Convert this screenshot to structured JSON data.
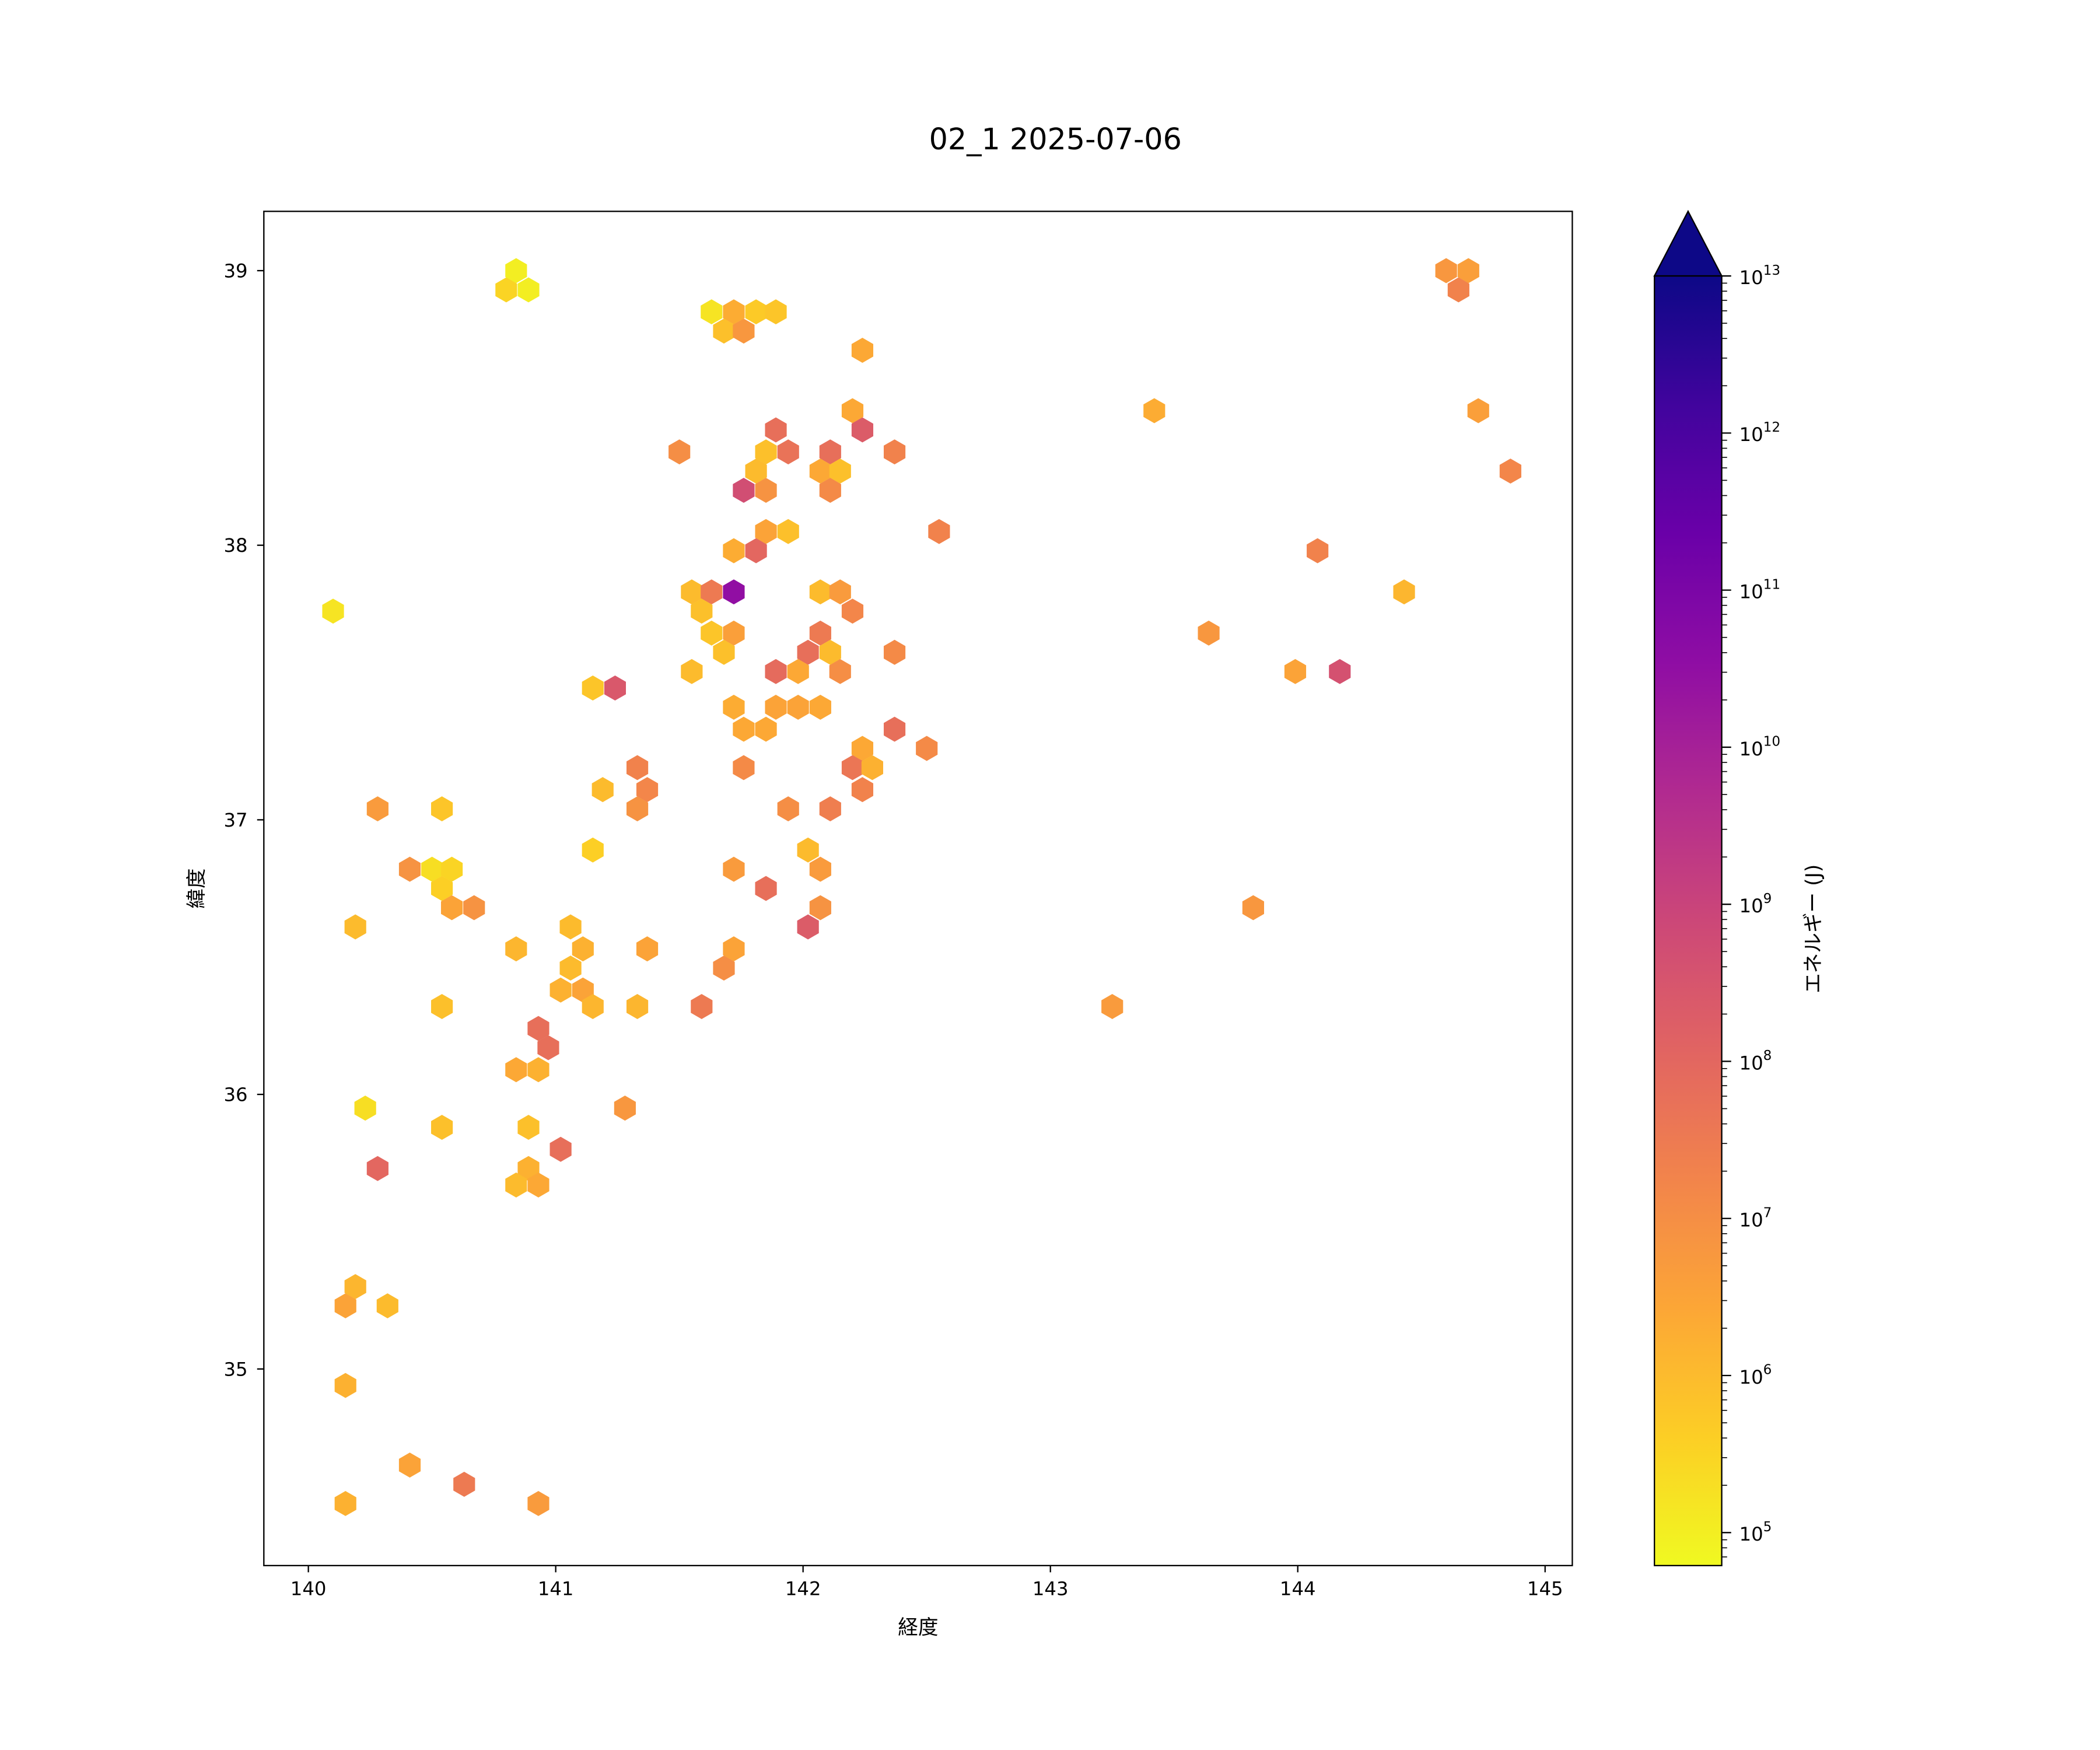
{
  "chart_data": {
    "type": "hexbin",
    "title": "02_1 2025-07-06",
    "xlabel": "経度",
    "ylabel": "緯度",
    "xlim": [
      139.82,
      145.11
    ],
    "ylim": [
      34.284,
      39.216
    ],
    "xticks": [
      {
        "v": 140,
        "label": "140"
      },
      {
        "v": 141,
        "label": "141"
      },
      {
        "v": 142,
        "label": "142"
      },
      {
        "v": 143,
        "label": "143"
      },
      {
        "v": 144,
        "label": "144"
      },
      {
        "v": 145,
        "label": "145"
      }
    ],
    "yticks": [
      {
        "v": 35,
        "label": "35"
      },
      {
        "v": 36,
        "label": "36"
      },
      {
        "v": 37,
        "label": "37"
      },
      {
        "v": 38,
        "label": "38"
      },
      {
        "v": 39,
        "label": "39"
      }
    ],
    "grid": false,
    "colorbar": {
      "label": "エネルギー (J)",
      "scale": "log",
      "log_range": [
        4.79,
        13
      ],
      "extend": "max",
      "colormap": "plasma_r",
      "colormap_stops": [
        "#0d0887",
        "#41049d",
        "#6a00a8",
        "#8f0da4",
        "#b12a90",
        "#cc4778",
        "#e16462",
        "#f2844b",
        "#fca636",
        "#fcce25",
        "#f0f921"
      ],
      "ticks": [
        {
          "log": 5,
          "base": "10",
          "exp": "5"
        },
        {
          "log": 6,
          "base": "10",
          "exp": "6"
        },
        {
          "log": 7,
          "base": "10",
          "exp": "7"
        },
        {
          "log": 8,
          "base": "10",
          "exp": "8"
        },
        {
          "log": 9,
          "base": "10",
          "exp": "9"
        },
        {
          "log": 10,
          "base": "10",
          "exp": "10"
        },
        {
          "log": 11,
          "base": "10",
          "exp": "11"
        },
        {
          "log": 12,
          "base": "10",
          "exp": "12"
        },
        {
          "log": 13,
          "base": "10",
          "exp": "13"
        }
      ]
    },
    "bins_lon_lat_log10energy": [
      [
        140.84,
        39.0,
        5.0
      ],
      [
        140.8,
        38.93,
        5.5
      ],
      [
        140.89,
        38.93,
        5.0
      ],
      [
        141.63,
        38.85,
        5.2
      ],
      [
        141.72,
        38.85,
        6.3
      ],
      [
        141.81,
        38.85,
        5.7
      ],
      [
        141.89,
        38.85,
        5.8
      ],
      [
        141.68,
        38.78,
        5.9
      ],
      [
        141.76,
        38.78,
        6.8
      ],
      [
        142.24,
        38.71,
        6.4
      ],
      [
        142.2,
        38.49,
        6.4
      ],
      [
        141.5,
        38.34,
        7.0
      ],
      [
        141.89,
        38.42,
        7.8
      ],
      [
        141.94,
        38.34,
        7.7
      ],
      [
        141.85,
        38.34,
        5.9
      ],
      [
        142.11,
        38.34,
        7.8
      ],
      [
        142.24,
        38.42,
        8.3
      ],
      [
        142.37,
        38.34,
        7.3
      ],
      [
        141.81,
        38.27,
        6.0
      ],
      [
        142.07,
        38.27,
        6.4
      ],
      [
        142.15,
        38.27,
        5.9
      ],
      [
        141.76,
        38.2,
        8.7
      ],
      [
        141.85,
        38.2,
        6.9
      ],
      [
        142.11,
        38.2,
        7.1
      ],
      [
        141.85,
        38.05,
        6.5
      ],
      [
        141.94,
        38.05,
        5.9
      ],
      [
        141.72,
        37.98,
        6.3
      ],
      [
        141.81,
        37.98,
        8.0
      ],
      [
        142.55,
        38.05,
        7.3
      ],
      [
        141.55,
        37.83,
        6.0
      ],
      [
        141.63,
        37.83,
        7.5
      ],
      [
        141.72,
        37.83,
        10.5
      ],
      [
        142.07,
        37.83,
        6.0
      ],
      [
        142.15,
        37.83,
        6.7
      ],
      [
        142.2,
        37.76,
        7.2
      ],
      [
        141.59,
        37.76,
        5.9
      ],
      [
        141.63,
        37.68,
        5.8
      ],
      [
        141.72,
        37.68,
        6.6
      ],
      [
        141.68,
        37.61,
        5.9
      ],
      [
        142.07,
        37.68,
        7.5
      ],
      [
        142.02,
        37.61,
        7.8
      ],
      [
        142.11,
        37.61,
        6.0
      ],
      [
        141.89,
        37.54,
        7.9
      ],
      [
        141.98,
        37.54,
        6.4
      ],
      [
        142.15,
        37.54,
        7.0
      ],
      [
        142.37,
        37.61,
        7.1
      ],
      [
        141.55,
        37.54,
        6.0
      ],
      [
        140.1,
        37.76,
        5.2
      ],
      [
        141.15,
        37.48,
        5.8
      ],
      [
        141.24,
        37.48,
        8.4
      ],
      [
        141.72,
        37.41,
        6.3
      ],
      [
        141.76,
        37.33,
        6.4
      ],
      [
        141.85,
        37.33,
        6.4
      ],
      [
        141.89,
        37.41,
        6.5
      ],
      [
        141.98,
        37.41,
        6.5
      ],
      [
        142.07,
        37.41,
        6.4
      ],
      [
        142.37,
        37.33,
        7.8
      ],
      [
        142.24,
        37.26,
        6.4
      ],
      [
        142.2,
        37.19,
        7.6
      ],
      [
        142.28,
        37.19,
        6.2
      ],
      [
        142.24,
        37.11,
        7.3
      ],
      [
        142.5,
        37.26,
        7.1
      ],
      [
        141.76,
        37.19,
        7.1
      ],
      [
        141.33,
        37.19,
        7.3
      ],
      [
        141.37,
        37.11,
        7.2
      ],
      [
        141.33,
        37.04,
        6.9
      ],
      [
        141.19,
        37.11,
        6.0
      ],
      [
        140.28,
        37.04,
        6.7
      ],
      [
        140.54,
        37.04,
        5.8
      ],
      [
        141.94,
        37.04,
        7.0
      ],
      [
        142.11,
        37.04,
        7.4
      ],
      [
        141.15,
        36.89,
        5.6
      ],
      [
        142.02,
        36.89,
        6.0
      ],
      [
        142.07,
        36.82,
        6.7
      ],
      [
        141.72,
        36.82,
        6.7
      ],
      [
        140.41,
        36.82,
        6.9
      ],
      [
        140.5,
        36.82,
        5.3
      ],
      [
        140.58,
        36.82,
        5.5
      ],
      [
        140.54,
        36.75,
        5.6
      ],
      [
        140.58,
        36.68,
        6.5
      ],
      [
        140.67,
        36.68,
        6.9
      ],
      [
        141.85,
        36.75,
        7.8
      ],
      [
        142.07,
        36.68,
        6.9
      ],
      [
        142.02,
        36.61,
        8.3
      ],
      [
        140.19,
        36.61,
        6.0
      ],
      [
        141.06,
        36.61,
        6.0
      ],
      [
        140.84,
        36.53,
        6.1
      ],
      [
        141.11,
        36.53,
        6.2
      ],
      [
        141.37,
        36.53,
        6.5
      ],
      [
        141.72,
        36.53,
        6.5
      ],
      [
        141.68,
        36.46,
        7.0
      ],
      [
        141.06,
        36.46,
        6.0
      ],
      [
        141.02,
        36.38,
        6.2
      ],
      [
        141.11,
        36.38,
        6.5
      ],
      [
        141.15,
        36.32,
        6.1
      ],
      [
        141.33,
        36.32,
        6.1
      ],
      [
        140.54,
        36.32,
        5.9
      ],
      [
        141.59,
        36.32,
        7.5
      ],
      [
        143.25,
        36.32,
        6.7
      ],
      [
        140.93,
        36.24,
        7.8
      ],
      [
        140.97,
        36.17,
        7.8
      ],
      [
        140.84,
        36.09,
        6.4
      ],
      [
        140.93,
        36.09,
        6.2
      ],
      [
        140.23,
        35.95,
        5.3
      ],
      [
        141.28,
        35.95,
        6.8
      ],
      [
        140.54,
        35.88,
        5.9
      ],
      [
        140.89,
        35.88,
        5.9
      ],
      [
        141.02,
        35.8,
        7.8
      ],
      [
        140.28,
        35.73,
        8.0
      ],
      [
        140.89,
        35.73,
        6.2
      ],
      [
        140.84,
        35.67,
        6.0
      ],
      [
        140.93,
        35.67,
        6.4
      ],
      [
        140.19,
        35.3,
        6.1
      ],
      [
        140.15,
        35.23,
        6.5
      ],
      [
        140.32,
        35.23,
        6.0
      ],
      [
        140.15,
        34.94,
        6.2
      ],
      [
        140.41,
        34.65,
        6.5
      ],
      [
        140.63,
        34.58,
        7.5
      ],
      [
        140.15,
        34.51,
        6.2
      ],
      [
        140.93,
        34.51,
        6.7
      ],
      [
        144.6,
        39.0,
        6.8
      ],
      [
        144.69,
        39.0,
        6.6
      ],
      [
        144.65,
        38.93,
        7.3
      ],
      [
        143.42,
        38.49,
        6.3
      ],
      [
        144.73,
        38.49,
        6.6
      ],
      [
        144.86,
        38.27,
        7.2
      ],
      [
        144.08,
        37.98,
        7.3
      ],
      [
        144.43,
        37.83,
        6.1
      ],
      [
        143.64,
        37.68,
        6.8
      ],
      [
        143.99,
        37.54,
        6.5
      ],
      [
        144.17,
        37.54,
        8.6
      ],
      [
        143.82,
        36.68,
        6.8
      ]
    ]
  }
}
